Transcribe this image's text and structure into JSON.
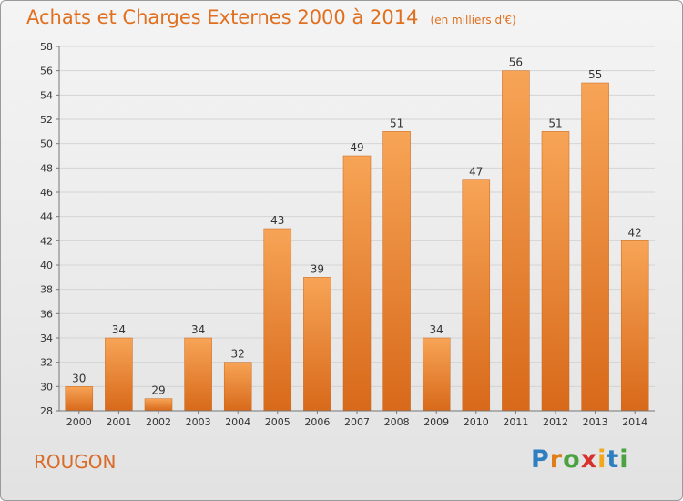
{
  "title": "Achats et Charges Externes 2000 à 2014",
  "unit_note": "(en milliers d'€)",
  "location": "ROUGON",
  "logo": {
    "letters": [
      "P",
      "r",
      "o",
      "x",
      "i",
      "t",
      "i"
    ],
    "colors": [
      "#2d7fc1",
      "#e07d1a",
      "#4aa340",
      "#d7302c",
      "#f2a81d",
      "#2d7fc1",
      "#4aa340"
    ]
  },
  "chart_data": {
    "type": "bar",
    "categories": [
      "2000",
      "2001",
      "2002",
      "2003",
      "2004",
      "2005",
      "2006",
      "2007",
      "2008",
      "2009",
      "2010",
      "2011",
      "2012",
      "2013",
      "2014"
    ],
    "values": [
      30,
      34,
      29,
      34,
      32,
      43,
      39,
      49,
      51,
      34,
      47,
      56,
      51,
      55,
      42
    ],
    "ylim": [
      28,
      58
    ],
    "yticks": [
      28,
      30,
      32,
      34,
      36,
      38,
      40,
      42,
      44,
      46,
      48,
      50,
      52,
      54,
      56,
      58
    ],
    "grid": true,
    "bar_color": "#f08f33",
    "grid_color": "#d4d4d4"
  }
}
